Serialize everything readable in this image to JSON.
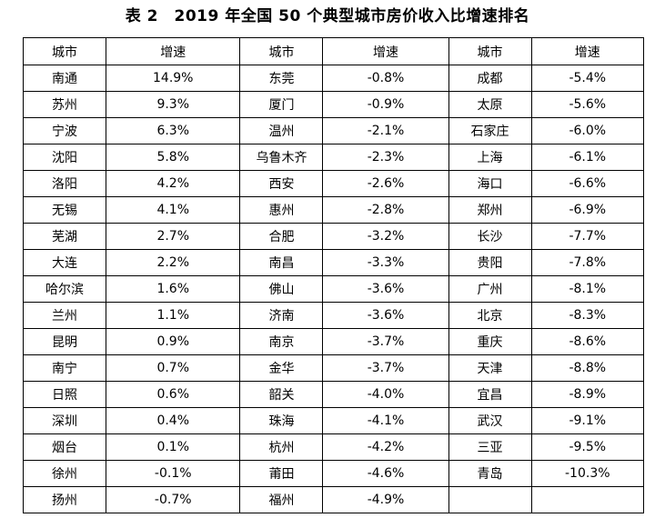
{
  "title": "表 2　2019 年全国 50 个典型城市房价收入比增速排名",
  "columns": [
    "城市",
    "增速",
    "城市",
    "增速",
    "城市",
    "增速"
  ],
  "rows": [
    [
      "南通",
      "14.9%",
      "东莞",
      "-0.8%",
      "成都",
      "-5.4%"
    ],
    [
      "苏州",
      "9.3%",
      "厦门",
      "-0.9%",
      "太原",
      "-5.6%"
    ],
    [
      "宁波",
      "6.3%",
      "温州",
      "-2.1%",
      "石家庄",
      "-6.0%"
    ],
    [
      "沈阳",
      "5.8%",
      "乌鲁木齐",
      "-2.3%",
      "上海",
      "-6.1%"
    ],
    [
      "洛阳",
      "4.2%",
      "西安",
      "-2.6%",
      "海口",
      "-6.6%"
    ],
    [
      "无锡",
      "4.1%",
      "惠州",
      "-2.8%",
      "郑州",
      "-6.9%"
    ],
    [
      "芜湖",
      "2.7%",
      "合肥",
      "-3.2%",
      "长沙",
      "-7.7%"
    ],
    [
      "大连",
      "2.2%",
      "南昌",
      "-3.3%",
      "贵阳",
      "-7.8%"
    ],
    [
      "哈尔滨",
      "1.6%",
      "佛山",
      "-3.6%",
      "广州",
      "-8.1%"
    ],
    [
      "兰州",
      "1.1%",
      "济南",
      "-3.6%",
      "北京",
      "-8.3%"
    ],
    [
      "昆明",
      "0.9%",
      "南京",
      "-3.7%",
      "重庆",
      "-8.6%"
    ],
    [
      "南宁",
      "0.7%",
      "金华",
      "-3.7%",
      "天津",
      "-8.8%"
    ],
    [
      "日照",
      "0.6%",
      "韶关",
      "-4.0%",
      "宜昌",
      "-8.9%"
    ],
    [
      "深圳",
      "0.4%",
      "珠海",
      "-4.1%",
      "武汉",
      "-9.1%"
    ],
    [
      "烟台",
      "0.1%",
      "杭州",
      "-4.2%",
      "三亚",
      "-9.5%"
    ],
    [
      "徐州",
      "-0.1%",
      "莆田",
      "-4.6%",
      "青岛",
      "-10.3%"
    ],
    [
      "扬州",
      "-0.7%",
      "福州",
      "-4.9%",
      "",
      ""
    ]
  ]
}
